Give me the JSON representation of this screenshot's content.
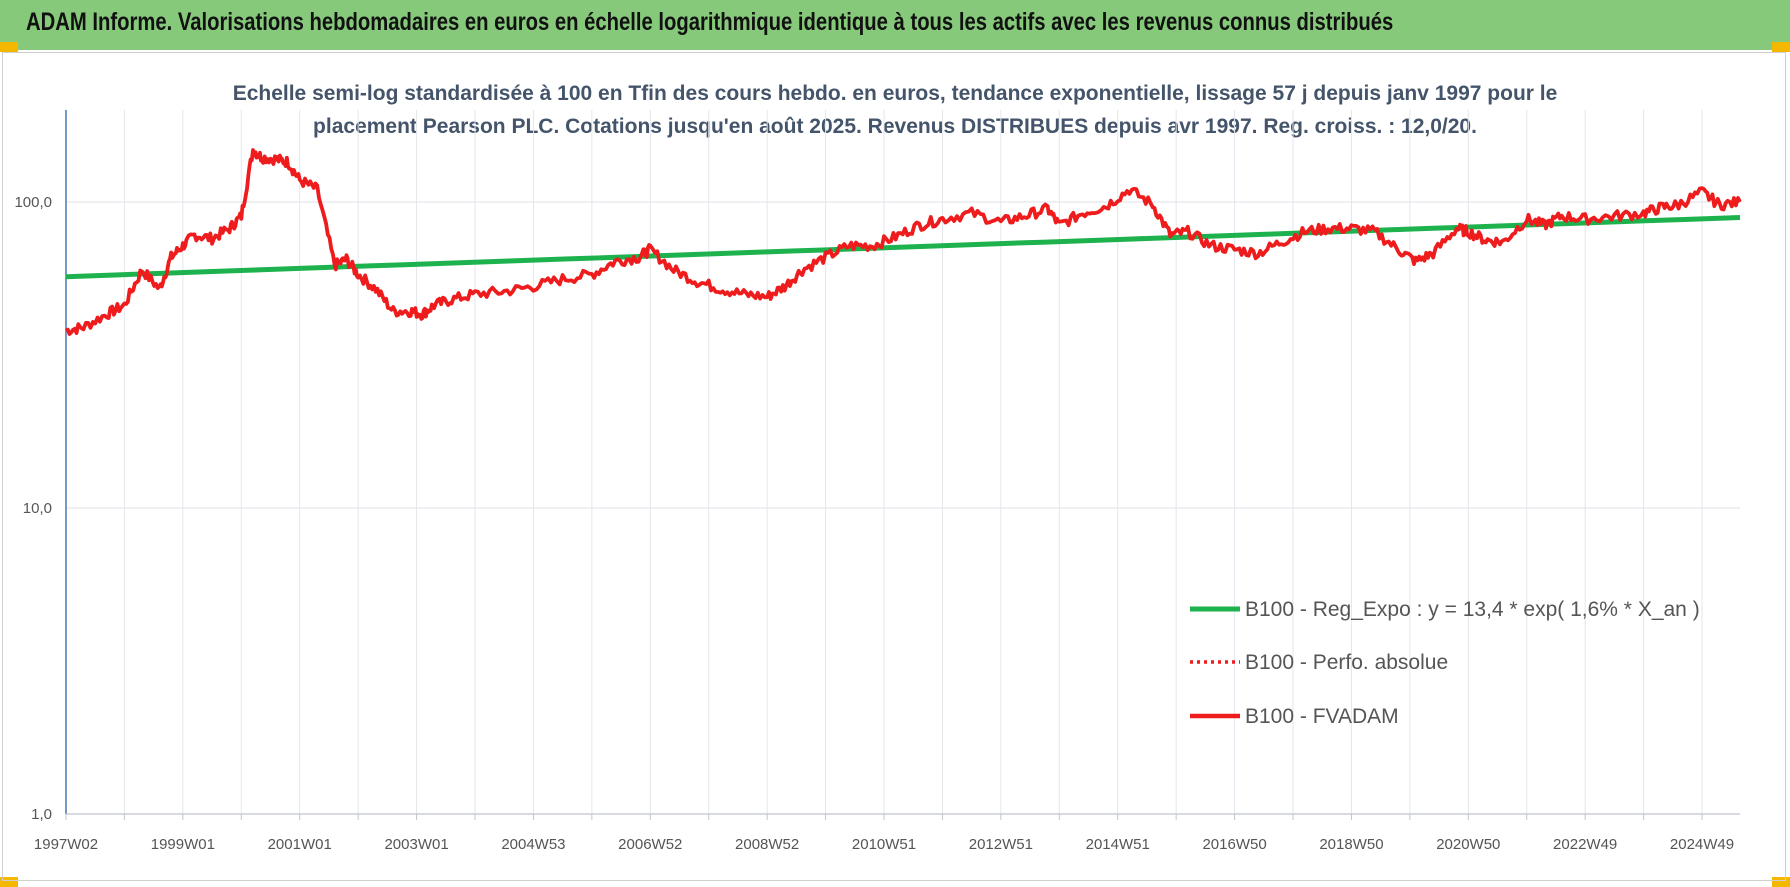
{
  "header": {
    "title": "ADAM Informe. Valorisations hebdomadaires en euros en échelle logarithmique identique à tous les actifs avec les revenus connus distribués"
  },
  "colors": {
    "header_bg": "#86c97a",
    "corner": "#f5b800",
    "red_series": "#ee1c1c",
    "green_series": "#1db24e",
    "grid": "#e3e6ec",
    "axis": "#4a76b0"
  },
  "chart_data": {
    "type": "line",
    "title_lines": [
      "Echelle semi-log standardisée à 100 en Tfin des cours hebdo. en euros, tendance exponentielle, lissage 57 j depuis janv 1997 pour le",
      "placement Pearson PLC. Cotations jusqu'en août 2025. Revenus DISTRIBUES depuis avr 1997. Reg. croiss. : 12,0/20."
    ],
    "y_scale": "log",
    "ylim": [
      1,
      200
    ],
    "y_ticks": [
      "1,0",
      "10,0",
      "100,0"
    ],
    "x_tick_labels": [
      "1997W02",
      "1999W01",
      "2001W01",
      "2003W01",
      "2004W53",
      "2006W52",
      "2008W52",
      "2010W51",
      "2012W51",
      "2014W51",
      "2016W50",
      "2018W50",
      "2020W50",
      "2022W49",
      "2024W49"
    ],
    "x_tick_years": [
      1997.0,
      1999.0,
      2001.0,
      2003.0,
      2005.0,
      2007.0,
      2009.0,
      2011.0,
      2013.0,
      2015.0,
      2017.0,
      2019.0,
      2021.0,
      2023.0,
      2025.0
    ],
    "xlim": [
      1997.0,
      2025.65
    ],
    "legend": {
      "position": "bottom-right",
      "entries": [
        {
          "label": "B100 - Reg_Expo : y = 13,4 * exp( 1,6% *  X_an )",
          "style": "solid-green"
        },
        {
          "label": "B100 - Perfo. absolue",
          "style": "dotted-red"
        },
        {
          "label": "B100 - FVADAM",
          "style": "solid-red"
        }
      ]
    },
    "series": [
      {
        "name": "B100 - Reg_Expo : y = 13,4 * exp( 1,6% *  X_an )",
        "color": "#1db24e",
        "x": [
          1997.0,
          2025.65
        ],
        "y": [
          57,
          89
        ]
      },
      {
        "name": "B100 - FVADAM",
        "color": "#ee1c1c",
        "x": [
          1997.0,
          1997.3,
          1997.7,
          1998.0,
          1998.3,
          1998.6,
          1998.8,
          1999.0,
          1999.2,
          1999.5,
          1999.8,
          2000.0,
          2000.2,
          2000.35,
          2000.6,
          2000.8,
          2001.0,
          2001.3,
          2001.6,
          2001.8,
          2002.0,
          2002.3,
          2002.6,
          2002.9,
          2003.1,
          2003.3,
          2003.6,
          2004.0,
          2004.5,
          2005.0,
          2005.5,
          2006.0,
          2006.4,
          2006.8,
          2007.0,
          2007.4,
          2007.8,
          2008.2,
          2008.6,
          2009.0,
          2009.3,
          2009.6,
          2010.0,
          2010.4,
          2010.8,
          2011.2,
          2011.6,
          2012.0,
          2012.5,
          2013.0,
          2013.4,
          2013.8,
          2014.0,
          2014.4,
          2014.8,
          2015.2,
          2015.6,
          2015.9,
          2016.2,
          2016.6,
          2017.0,
          2017.4,
          2017.8,
          2018.2,
          2018.6,
          2019.0,
          2019.4,
          2019.8,
          2020.1,
          2020.4,
          2020.8,
          2021.0,
          2021.3,
          2021.6,
          2022.0,
          2022.3,
          2022.6,
          2023.0,
          2023.5,
          2024.0,
          2024.3,
          2024.6,
          2025.0,
          2025.3,
          2025.65
        ],
        "y": [
          38,
          39,
          43,
          46,
          60,
          52,
          66,
          72,
          78,
          76,
          82,
          90,
          148,
          140,
          138,
          135,
          118,
          110,
          62,
          65,
          58,
          52,
          44,
          44,
          43,
          46,
          48,
          50,
          51,
          53,
          56,
          58,
          64,
          66,
          70,
          60,
          55,
          52,
          50,
          49,
          53,
          60,
          66,
          72,
          72,
          77,
          84,
          88,
          92,
          86,
          90,
          95,
          84,
          92,
          97,
          110,
          98,
          78,
          80,
          72,
          70,
          68,
          74,
          80,
          82,
          82,
          80,
          70,
          64,
          68,
          82,
          80,
          75,
          74,
          88,
          84,
          90,
          88,
          90,
          92,
          96,
          98,
          108,
          98,
          100
        ]
      }
    ]
  }
}
